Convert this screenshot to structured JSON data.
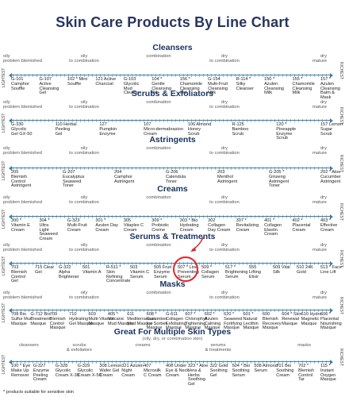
{
  "title": "Skin Care Products By Line Chart",
  "side_left": "LIGHTEST",
  "side_right": "RICHEST",
  "footnote": "* products suitable for sensitive skin",
  "zones_std": [
    "oily problem blemished",
    "oily to combination",
    "combination",
    "dry to combination",
    "dry mature"
  ],
  "sections": [
    {
      "title": "Cleansers",
      "products": [
        "G-101 Camphor Souffle",
        "G-107 Active Cleansing Gel",
        "102 * Mint Souffle",
        "121 Active Charcoal",
        "G-103 Glycolic Mud Cleanser",
        "104 * Gentle Cleansing Oil",
        "156 * Chamomile Cleansing Gel",
        "G-154 Multi-Fruit Cleansing Milk",
        "R-114 * Silky Cleanser",
        "150 * Azulen Cleansing Milk",
        "155 * Chamomile Cleansing Milk",
        "157 * Azulen Cleansing Balm & Mask"
      ]
    },
    {
      "title": "Scrubs & Exfoliators",
      "products": [
        "G-330 Glycolic Gel GX-50",
        "110 Herbal Peeling Gel",
        "127 Pumpkin Enzyme",
        "107 Micro-dermabrasion Cream",
        "106 Almond Honey Scrub",
        "R-125 Bamboo Scrub",
        "120 * Pineapple Enzyme Scrub",
        "157 Lemon Sugar Scrub"
      ]
    },
    {
      "title": "Astringents",
      "products": [
        "205 Blemish Control Astringent",
        "G-207 Eucalyptus Seaweed Toner",
        "204 Camphor Astringent",
        "G-206 Calendula Toner",
        "203 Menthol Astringent",
        "G-205 * Ginseng Astringent Toner",
        "202 * Aloe Cucumber Astringent"
      ]
    },
    {
      "title": "Creams",
      "products": [
        "300 * Vitamin E Cream",
        "304 * Ultra Light Seaweed Cream",
        "G-323 Multi-Fruit Cream",
        "301 * Azulen Day Cream",
        "305 Vitaplex C Cream",
        "309 * Probiotic Creme",
        "303 * Bio Hydrating Cream",
        "302 Collagen Day Cream",
        "307 * Revitalizing Cream",
        "401 * Collagen Elastin Cream",
        "402 * Placental Cream",
        "403 * Effective Cream"
      ]
    },
    {
      "title": "Serums & Treatments",
      "products": [
        "703 Blemish Control Gel",
        "715 Clear Gel",
        "G-322 Alpha Brightener",
        "501 Vitamin A",
        "R-511 * Skin Refining Concentrate",
        "503 Vitamin C Serum",
        "505 Fruit Enzyme Serum",
        "507 * Line Preventing Serum",
        "509 * Collagen Serum",
        "517 * Brightening Serum",
        "555 Lifting Elixir",
        "509 Vital Silk",
        "510 24K Gold",
        "513 * Face Line Lift"
      ]
    },
    {
      "title": "Masks",
      "products": [
        "708 Bio Sulfur Mud Masque",
        "G-712 Bio Treatment Masque",
        "709 Blemish Control Masque",
        "710 Hydrating Gel Masque",
        "603 Multi-Vitamin Masque",
        "405 * Volcanic Mud Masque",
        "611 Mediterranean Mud Masque",
        "608 * Cucumber Ice Sorbet Masque",
        "G-611 Collagen Exfoliating Masque",
        "607 * Chlorophyll Tightening Masque",
        "602 * Azulen Calming Masque",
        "620 * Seaweed Fortifying Masque",
        "601 * Natural Lecithin Masque",
        "600 Blemish Recovery Masque",
        "604 * Skin Renewal Masque",
        "610 Hydro Magnetic Masque",
        "606 * Placental Nourishing Masque"
      ]
    },
    {
      "title": "Great For Multiple Skin Types",
      "subtitle": "(oily, dry, or combination skin)",
      "zones": [
        "cleansers",
        "scrubs & exfoliators",
        "creams",
        "serums & treatments",
        "masks"
      ],
      "products": [
        "100 * Eye Make Up Remover",
        "G-327 Enzyme Peeling Cream",
        "G-328 Glycolic Cream X-30",
        "G-329 Glycolic Cream X-50",
        "308 Lemon Wafer Gel Cream",
        "321 Azulen Night Cream",
        "407 Microsilk C Cream",
        "408 Under Eye & Neck Cream",
        "323 * Aloe Vera & Herbs Soothing Gel",
        "322 Gold Soothing Gel",
        "504 * Bio Soothing Serum",
        "508 Almond Serum",
        "701 Bio Soothing Cream",
        "702 * Blemish Control Tar",
        "115 * Instant Oxygen Masque"
      ]
    }
  ]
}
